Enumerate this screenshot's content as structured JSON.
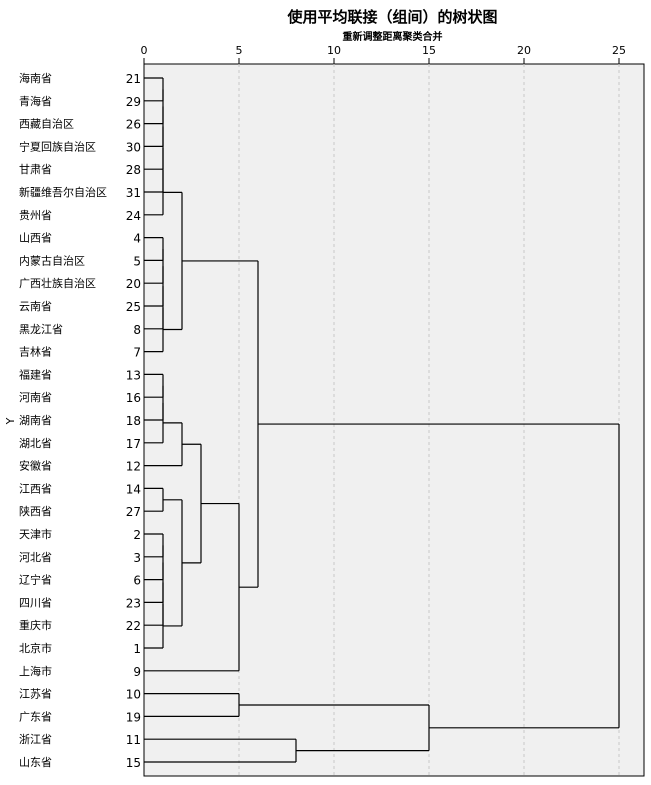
{
  "chart_data": {
    "type": "dendrogram",
    "title": "使用平均联接（组间）的树状图",
    "xlabel": "重新调整距离聚类合并",
    "ylabel": "Y",
    "xlim": [
      0,
      25
    ],
    "x_ticks": [
      0,
      5,
      10,
      15,
      20,
      25
    ],
    "leaves": [
      {
        "label": "海南省",
        "id": 21
      },
      {
        "label": "青海省",
        "id": 29
      },
      {
        "label": "西藏自治区",
        "id": 26
      },
      {
        "label": "宁夏回族自治区",
        "id": 30
      },
      {
        "label": "甘肃省",
        "id": 28
      },
      {
        "label": "新疆维吾尔自治区",
        "id": 31
      },
      {
        "label": "贵州省",
        "id": 24
      },
      {
        "label": "山西省",
        "id": 4
      },
      {
        "label": "内蒙古自治区",
        "id": 5
      },
      {
        "label": "广西壮族自治区",
        "id": 20
      },
      {
        "label": "云南省",
        "id": 25
      },
      {
        "label": "黑龙江省",
        "id": 8
      },
      {
        "label": "吉林省",
        "id": 7
      },
      {
        "label": "福建省",
        "id": 13
      },
      {
        "label": "河南省",
        "id": 16
      },
      {
        "label": "湖南省",
        "id": 18
      },
      {
        "label": "湖北省",
        "id": 17
      },
      {
        "label": "安徽省",
        "id": 12
      },
      {
        "label": "江西省",
        "id": 14
      },
      {
        "label": "陕西省",
        "id": 27
      },
      {
        "label": "天津市",
        "id": 2
      },
      {
        "label": "河北省",
        "id": 3
      },
      {
        "label": "辽宁省",
        "id": 6
      },
      {
        "label": "四川省",
        "id": 23
      },
      {
        "label": "重庆市",
        "id": 22
      },
      {
        "label": "北京市",
        "id": 1
      },
      {
        "label": "上海市",
        "id": 9
      },
      {
        "label": "江苏省",
        "id": 10
      },
      {
        "label": "广东省",
        "id": 19
      },
      {
        "label": "浙江省",
        "id": 11
      },
      {
        "label": "山东省",
        "id": 15
      }
    ],
    "merges": [
      {
        "a": "L0",
        "b": "L1",
        "height": 1,
        "name": "A"
      },
      {
        "a": "A",
        "b": "L2",
        "height": 1,
        "name": "B"
      },
      {
        "a": "B",
        "b": "L3",
        "height": 1,
        "name": "C"
      },
      {
        "a": "C",
        "b": "L4",
        "height": 1,
        "name": "D"
      },
      {
        "a": "D",
        "b": "L5",
        "height": 1,
        "name": "E"
      },
      {
        "a": "E",
        "b": "L6",
        "height": 1,
        "name": "F"
      },
      {
        "a": "L7",
        "b": "L8",
        "height": 1,
        "name": "G"
      },
      {
        "a": "G",
        "b": "L9",
        "height": 1,
        "name": "H"
      },
      {
        "a": "H",
        "b": "L10",
        "height": 1,
        "name": "I"
      },
      {
        "a": "I",
        "b": "L11",
        "height": 1,
        "name": "J"
      },
      {
        "a": "J",
        "b": "L12",
        "height": 1,
        "name": "K"
      },
      {
        "a": "F",
        "b": "K",
        "height": 2,
        "name": "M1"
      },
      {
        "a": "L13",
        "b": "L14",
        "height": 1,
        "name": "N"
      },
      {
        "a": "N",
        "b": "L15",
        "height": 1,
        "name": "O"
      },
      {
        "a": "O",
        "b": "L16",
        "height": 1,
        "name": "P"
      },
      {
        "a": "P",
        "b": "L17",
        "height": 2,
        "name": "Q"
      },
      {
        "a": "L18",
        "b": "L19",
        "height": 1,
        "name": "R"
      },
      {
        "a": "L20",
        "b": "L21",
        "height": 1,
        "name": "S"
      },
      {
        "a": "S",
        "b": "L22",
        "height": 1,
        "name": "T"
      },
      {
        "a": "T",
        "b": "L23",
        "height": 1,
        "name": "U"
      },
      {
        "a": "U",
        "b": "L24",
        "height": 1,
        "name": "V"
      },
      {
        "a": "V",
        "b": "L25",
        "height": 1,
        "name": "W"
      },
      {
        "a": "R",
        "b": "W",
        "height": 2,
        "name": "X"
      },
      {
        "a": "Q",
        "b": "X",
        "height": 3,
        "name": "Y1"
      },
      {
        "a": "Y1",
        "b": "L26",
        "height": 5,
        "name": "Z"
      },
      {
        "a": "M1",
        "b": "Z",
        "height": 6,
        "name": "AA"
      },
      {
        "a": "L27",
        "b": "L28",
        "height": 5,
        "name": "BB"
      },
      {
        "a": "L29",
        "b": "L30",
        "height": 8,
        "name": "CC"
      },
      {
        "a": "BB",
        "b": "CC",
        "height": 15,
        "name": "DD"
      },
      {
        "a": "AA",
        "b": "DD",
        "height": 25,
        "name": "ROOT"
      }
    ],
    "grid": true
  }
}
